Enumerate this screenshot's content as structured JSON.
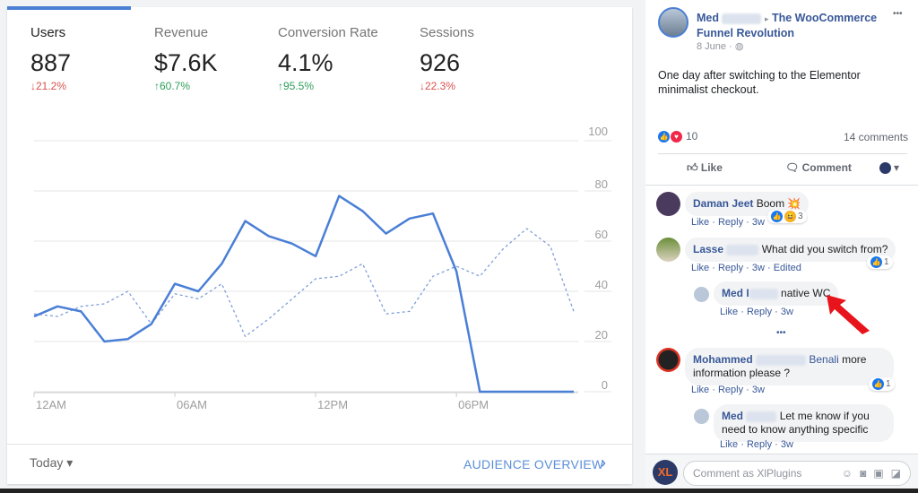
{
  "analytics": {
    "metrics": [
      {
        "label": "Users",
        "value": "887",
        "change": "↓21.2%",
        "direction": "down"
      },
      {
        "label": "Revenue",
        "value": "$7.6K",
        "change": "↑60.7%",
        "direction": "up"
      },
      {
        "label": "Conversion Rate",
        "value": "4.1%",
        "change": "↑95.5%",
        "direction": "up"
      },
      {
        "label": "Sessions",
        "value": "926",
        "change": "↓22.3%",
        "direction": "down"
      }
    ],
    "date_range": "Today",
    "date_range_caret": "▾",
    "overview_link": "AUDIENCE OVERVIEW",
    "overview_chevron": "›"
  },
  "chart_data": {
    "type": "line",
    "x": [
      0,
      1,
      2,
      3,
      4,
      5,
      6,
      7,
      8,
      9,
      10,
      11,
      12,
      13,
      14,
      15,
      16,
      17,
      18,
      19,
      20,
      21,
      22,
      23
    ],
    "x_tick_labels": [
      "12AM",
      "06AM",
      "12PM",
      "06PM"
    ],
    "x_tick_positions": [
      0,
      6,
      12,
      18
    ],
    "y_ticks": [
      "0",
      "20",
      "40",
      "60",
      "80",
      "100"
    ],
    "ylim": [
      0,
      100
    ],
    "grid": true,
    "series": [
      {
        "style": "solid",
        "color": "#4a7fd6",
        "values": [
          30,
          34,
          32,
          20,
          21,
          27,
          43,
          40,
          51,
          68,
          62,
          59,
          54,
          78,
          72,
          63,
          69,
          71,
          48,
          0,
          0,
          0,
          0,
          0
        ]
      },
      {
        "style": "dashed",
        "color": "#7f9fd8",
        "values": [
          31,
          30,
          34,
          35,
          40,
          27,
          39,
          37,
          43,
          22,
          29,
          37,
          45,
          46,
          51,
          31,
          32,
          46,
          50,
          46,
          57,
          65,
          58,
          32
        ]
      }
    ]
  },
  "post": {
    "author": "Med",
    "arrow": "▸",
    "group": "The WooCommerce Funnel Revolution",
    "date": "8 June ·",
    "more": "•••",
    "text": "One day after switching to the Elementor minimalist checkout.",
    "reaction_count": "10",
    "comments_count": "14 comments",
    "like_label": "Like",
    "comment_label": "Comment",
    "caret": "▾",
    "see_more": "•••",
    "colors": {
      "link": "#385898",
      "like": "#1877f2",
      "love": "#f02849",
      "arrow": "#e8141b"
    }
  },
  "comments": [
    {
      "author": "Daman Jeet",
      "text": "Boom 💥",
      "actions": "Like · Reply · 3w",
      "reactions": "3"
    },
    {
      "author": "Lasse",
      "text": "What did you switch from?",
      "actions": "Like · Reply · 3w · Edited",
      "reactions": "1"
    },
    {
      "author": "Med I",
      "text": "native WC",
      "actions": "Like · Reply · 3w"
    },
    {
      "author": "Mohammed",
      "author2": "Benali",
      "text": "more information please ?",
      "actions": "Like · Reply · 3w",
      "reactions": "1"
    },
    {
      "author": "Med",
      "text": "Let me know if you need to know anything specific",
      "actions": "Like · Reply · 3w"
    }
  ],
  "composer": {
    "placeholder": "Comment as XlPlugins",
    "avatar_text": "XL"
  }
}
